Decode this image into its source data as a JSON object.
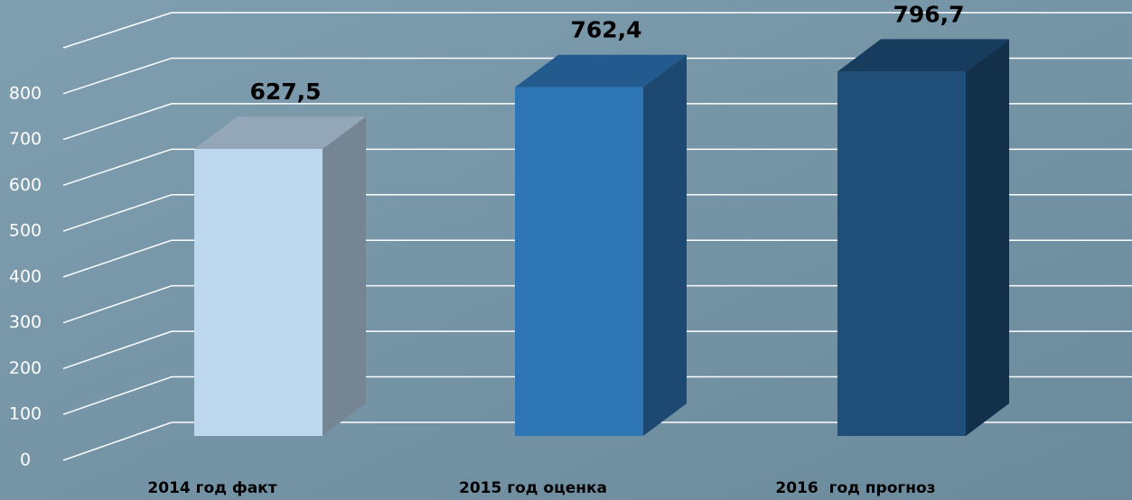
{
  "chart_data": {
    "type": "bar3d",
    "categories": [
      "2014 год факт",
      "2015 год оценка",
      "2016  год прогноз"
    ],
    "values": [
      627.5,
      762.4,
      796.7
    ],
    "value_labels": [
      "627,5",
      "762,4",
      "796,7"
    ],
    "colors": [
      "#bdd7ee",
      "#2e75b6",
      "#1f4e79"
    ],
    "ylim": [
      0,
      900
    ],
    "yticks": [
      0,
      100,
      200,
      300,
      400,
      500,
      600,
      700,
      800
    ],
    "grid": true
  }
}
